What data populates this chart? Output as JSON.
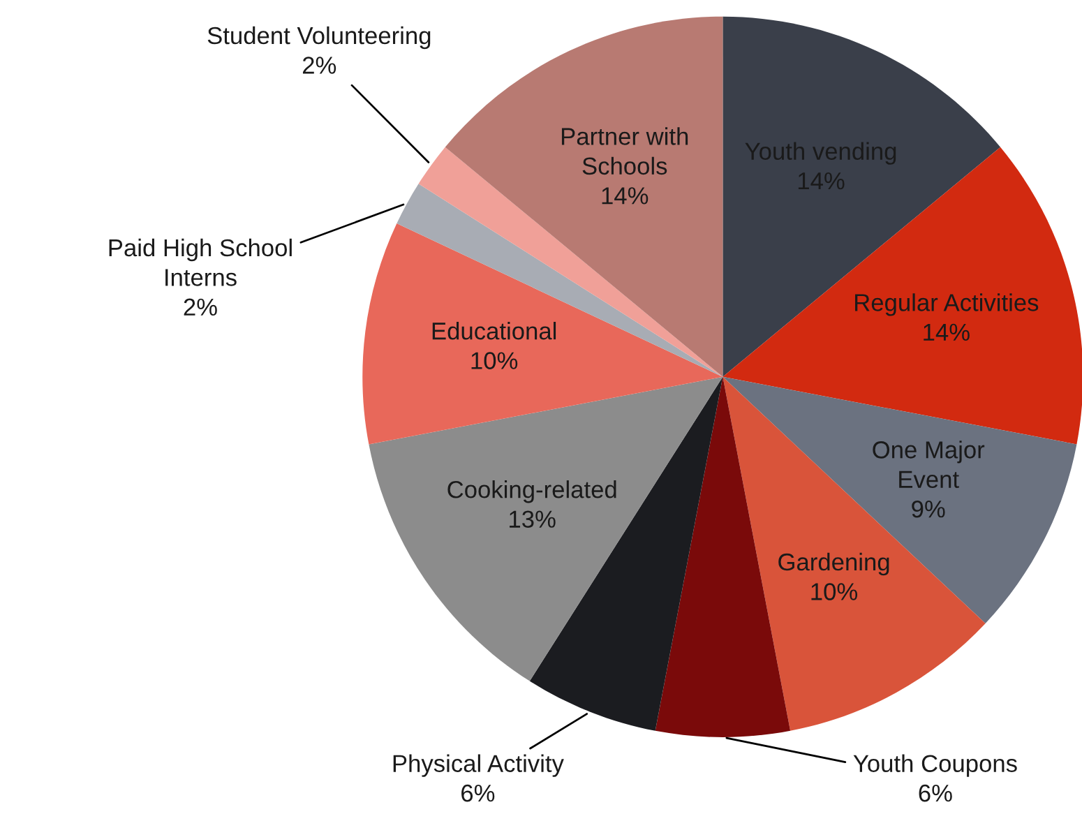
{
  "chart_data": {
    "type": "pie",
    "categories": [
      "Youth vending",
      "Regular Activities",
      "One Major Event",
      "Gardening",
      "Youth Coupons",
      "Physical Activity",
      "Cooking-related",
      "Educational",
      "Paid High School Interns",
      "Student Volunteering",
      "Partner with Schools"
    ],
    "values": [
      14,
      14,
      9,
      10,
      6,
      6,
      13,
      10,
      2,
      2,
      14
    ],
    "colors": [
      "#3a3f4a",
      "#d22a10",
      "#6b7280",
      "#d9543a",
      "#7a0a0a",
      "#1b1c20",
      "#8c8c8c",
      "#e8685a",
      "#a8acb4",
      "#f0a098",
      "#b87a72"
    ],
    "value_labels": [
      "14%",
      "14%",
      "9%",
      "10%",
      "6%",
      "6%",
      "13%",
      "10%",
      "2%",
      "2%",
      "14%"
    ]
  }
}
